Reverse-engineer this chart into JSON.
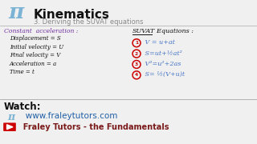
{
  "bg_color": "#f0f0f0",
  "title_main": "Kinematics",
  "title_sub": "3. Deriving the SUVAT equations",
  "pi_color": "#7bb3d4",
  "heading_color": "#7030a0",
  "left_heading": "Constant  acceleration :",
  "left_items": [
    "Displacement = S",
    "Initial velocity = U",
    "Final velocity = V",
    "Acceleration = a",
    "Time = t"
  ],
  "right_heading1": "SUVAT",
  "right_heading2": "  Equations :",
  "equations": [
    " V = u+at",
    " S=ut+½at²",
    " V²=u²+2as",
    " S= ½(V+u)t"
  ],
  "watch_text": "Watch:",
  "url_text": "   www.fraleytutors.com",
  "channel_text": "  Fraley Tutors - the Fundamentals",
  "red_color": "#cc0000",
  "dark_red": "#7b1a1a",
  "blue_color": "#1f5fa6",
  "black_color": "#111111",
  "gray_color": "#888888",
  "suvat_blue": "#4472c4"
}
